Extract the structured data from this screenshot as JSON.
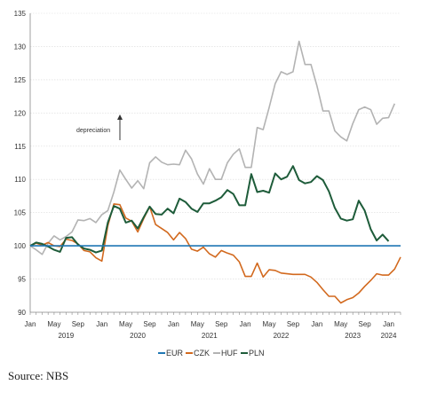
{
  "chart_data": {
    "type": "line",
    "ylim": [
      90,
      135
    ],
    "y_ticks": [
      90,
      95,
      100,
      105,
      110,
      115,
      120,
      125,
      130,
      135
    ],
    "x_month_labels": [
      {
        "t": 0,
        "label": "Jan"
      },
      {
        "t": 4,
        "label": "May"
      },
      {
        "t": 8,
        "label": "Sep"
      },
      {
        "t": 12,
        "label": "Jan"
      },
      {
        "t": 16,
        "label": "May"
      },
      {
        "t": 20,
        "label": "Sep"
      },
      {
        "t": 24,
        "label": "Jan"
      },
      {
        "t": 28,
        "label": "May"
      },
      {
        "t": 32,
        "label": "Sep"
      },
      {
        "t": 36,
        "label": "Jan"
      },
      {
        "t": 40,
        "label": "May"
      },
      {
        "t": 44,
        "label": "Sep"
      },
      {
        "t": 48,
        "label": "Jan"
      },
      {
        "t": 52,
        "label": "May"
      },
      {
        "t": 56,
        "label": "Sep"
      },
      {
        "t": 60,
        "label": "Jan"
      }
    ],
    "x_year_labels": [
      {
        "t": 6,
        "label": "2019"
      },
      {
        "t": 18,
        "label": "2020"
      },
      {
        "t": 30,
        "label": "2021"
      },
      {
        "t": 42,
        "label": "2022"
      },
      {
        "t": 54,
        "label": "2023"
      },
      {
        "t": 60,
        "label": "2024"
      }
    ],
    "annotation": "depreciation",
    "series": [
      {
        "name": "EUR",
        "color": "#1f77b4",
        "values": [
          100,
          100,
          100,
          100,
          100,
          100,
          100,
          100,
          100,
          100,
          100,
          100,
          100,
          100,
          100,
          100,
          100,
          100,
          100,
          100,
          100,
          100,
          100,
          100,
          100,
          100,
          100,
          100,
          100,
          100,
          100,
          100,
          100,
          100,
          100,
          100,
          100,
          100,
          100,
          100,
          100,
          100,
          100,
          100,
          100,
          100,
          100,
          100,
          100,
          100,
          100,
          100,
          100,
          100,
          100,
          100,
          100,
          100,
          100,
          100,
          100,
          100,
          100
        ]
      },
      {
        "name": "CZK",
        "color": "#d2691e",
        "values": [
          100,
          100.4,
          100.1,
          100.5,
          100,
          99.9,
          101,
          100.8,
          100.3,
          99.3,
          99.1,
          98.2,
          97.7,
          103,
          106.3,
          106.2,
          104.2,
          103.7,
          102.1,
          104.1,
          105.9,
          103.2,
          102.6,
          102,
          100.9,
          102,
          101.1,
          99.5,
          99.2,
          99.8,
          98.8,
          98.3,
          99.3,
          98.9,
          98.6,
          97.6,
          95.4,
          95.4,
          97.4,
          95.3,
          96.4,
          96.3,
          95.9,
          95.8,
          95.7,
          95.7,
          95.7,
          95.3,
          94.5,
          93.4,
          92.4,
          92.4,
          91.4,
          91.9,
          92.2,
          92.9,
          93.9,
          94.8,
          95.8,
          95.6,
          95.6,
          96.5,
          98.3
        ]
      },
      {
        "name": "HUF",
        "color": "#b3b3b3",
        "values": [
          100,
          99.4,
          98.7,
          100.4,
          101.5,
          100.9,
          101.4,
          102.1,
          103.9,
          103.8,
          104.1,
          103.5,
          104.7,
          105.3,
          108.1,
          111.4,
          110,
          108.7,
          109.8,
          108.6,
          112.5,
          113.4,
          112.6,
          112.2,
          112.3,
          112.2,
          114.4,
          113.1,
          110.8,
          109.3,
          111.6,
          110,
          110,
          112.5,
          113.8,
          114.6,
          111.8,
          111.8,
          117.8,
          117.5,
          120.8,
          124.4,
          126.2,
          125.8,
          126.2,
          130.8,
          127.3,
          127.3,
          124.1,
          120.3,
          120.3,
          117.3,
          116.4,
          115.8,
          118.4,
          120.5,
          120.9,
          120.5,
          118.3,
          119.2,
          119.3,
          121.4
        ]
      },
      {
        "name": "PLN",
        "color": "#1e5c3a",
        "values": [
          100,
          100.5,
          100.3,
          99.9,
          99.4,
          99.1,
          101.2,
          101.3,
          100.2,
          99.6,
          99.4,
          99,
          99.3,
          103.5,
          106,
          105.6,
          103.5,
          103.8,
          102.6,
          104.3,
          105.9,
          104.8,
          104.7,
          105.6,
          104.9,
          107.1,
          106.6,
          105.6,
          105.1,
          106.4,
          106.4,
          106.8,
          107.3,
          108.4,
          107.8,
          106.1,
          106.1,
          110.8,
          108.1,
          108.3,
          108,
          110.9,
          110,
          110.4,
          112,
          109.9,
          109.4,
          109.6,
          110.5,
          109.9,
          108.2,
          105.7,
          104.1,
          103.8,
          104,
          106.8,
          105.3,
          102.5,
          100.8,
          101.7,
          100.7
        ]
      }
    ]
  },
  "source_text": "Source: NBS"
}
